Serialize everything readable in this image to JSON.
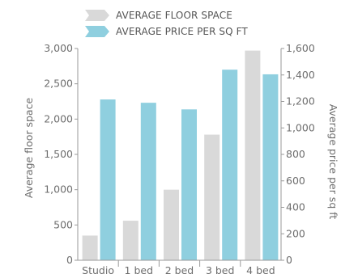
{
  "chart_data": {
    "type": "bar",
    "categories": [
      "Studio",
      "1 bed",
      "2 bed",
      "3 bed",
      "4 bed"
    ],
    "series": [
      {
        "name": "AVERAGE FLOOR SPACE",
        "axis": "left",
        "color": "#d9d9d9",
        "values": [
          350,
          560,
          1000,
          1780,
          2970
        ]
      },
      {
        "name": "AVERAGE PRICE PER SQ FT",
        "axis": "right",
        "color": "#8fcfdf",
        "values": [
          1215,
          1190,
          1140,
          1440,
          1405
        ]
      }
    ],
    "ylabel": "Average floor space",
    "y2label": "Average price per sq ft",
    "ylim": [
      0,
      3000
    ],
    "y2lim": [
      0,
      1600
    ],
    "yticks": [
      0,
      500,
      1000,
      1500,
      2000,
      2500,
      3000
    ],
    "y2ticks": [
      0,
      200,
      400,
      600,
      800,
      1000,
      1200,
      1400,
      1600
    ],
    "legend_position": "top-left",
    "grid": false
  }
}
